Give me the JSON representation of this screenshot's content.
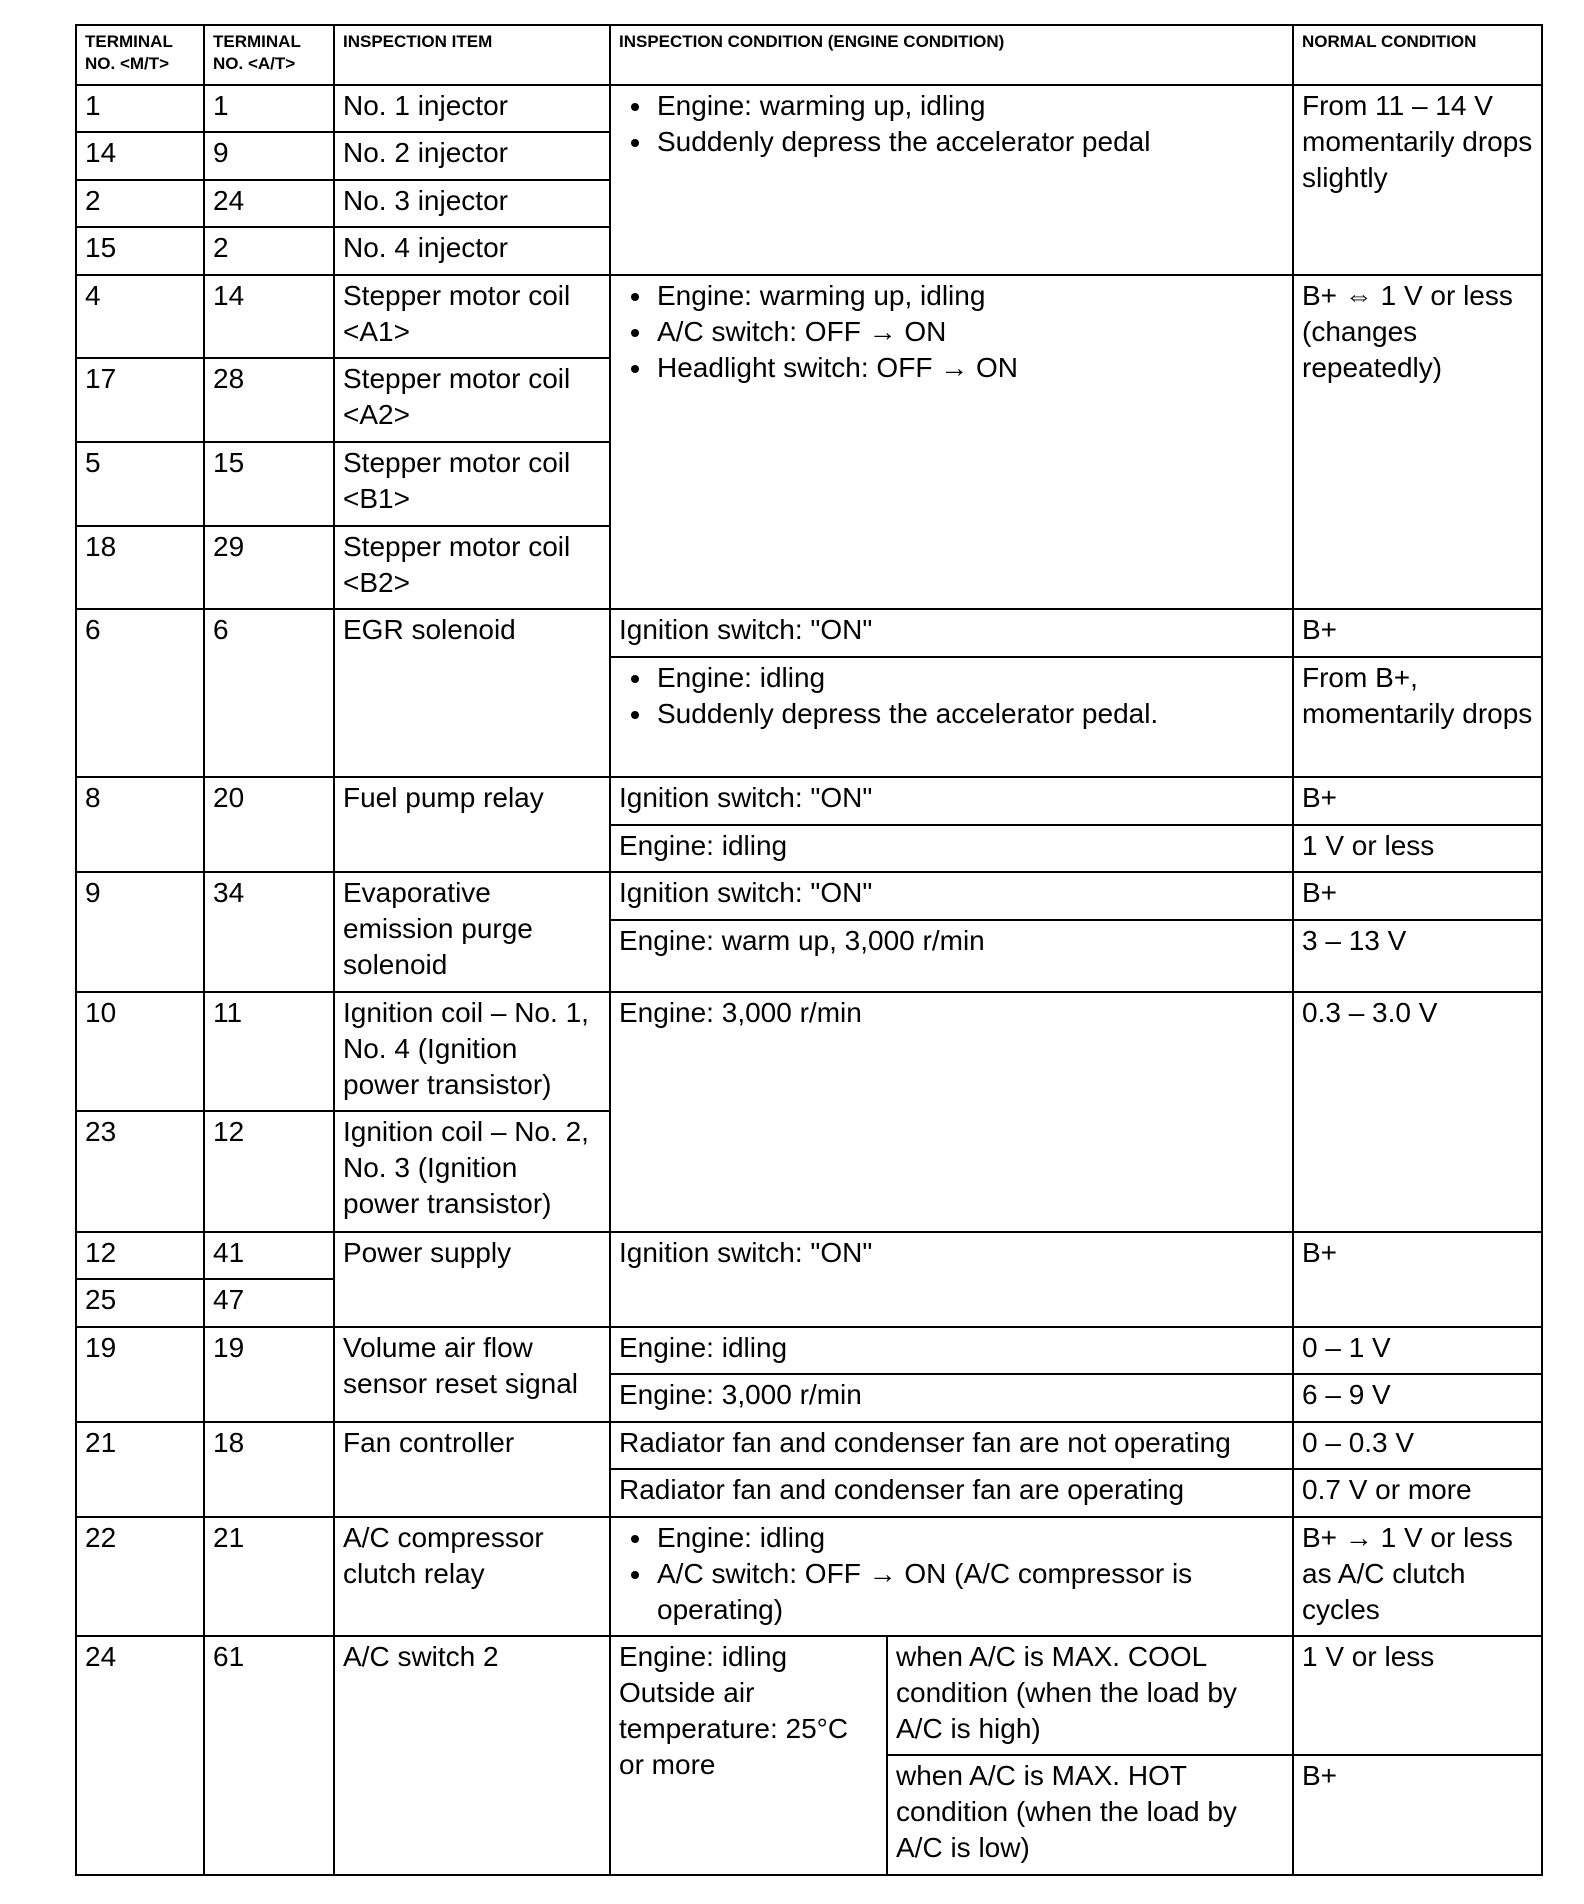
{
  "headers": [
    "TERMINAL NO. <M/T>",
    "TERMINAL NO. <A/T>",
    "INSPECTION ITEM",
    "INSPECTION CONDITION (ENGINE CONDITION)",
    "NORMAL CONDITION"
  ],
  "injectors": {
    "rows": [
      {
        "mt": "1",
        "at": "1",
        "item": "No. 1 injector"
      },
      {
        "mt": "14",
        "at": "9",
        "item": "No. 2 injector"
      },
      {
        "mt": "2",
        "at": "24",
        "item": "No. 3 injector"
      },
      {
        "mt": "15",
        "at": "2",
        "item": "No. 4 injector"
      }
    ],
    "conditions": [
      "Engine: warming up, idling",
      "Suddenly depress the accelerator pedal"
    ],
    "normal": "From 11 – 14 V momentarily drops slightly"
  },
  "stepper": {
    "rows": [
      {
        "mt": "4",
        "at": "14",
        "item": "Stepper motor coil <A1>"
      },
      {
        "mt": "17",
        "at": "28",
        "item": "Stepper motor coil <A2>"
      },
      {
        "mt": "5",
        "at": "15",
        "item": "Stepper motor coil <B1>"
      },
      {
        "mt": "18",
        "at": "29",
        "item": "Stepper motor coil <B2>"
      }
    ],
    "conditions": [
      "Engine: warming up, idling",
      "A/C switch: OFF → ON",
      "Headlight switch: OFF → ON"
    ],
    "normal": "B+ ⇔ 1 V or less (changes repeatedly)"
  },
  "egr": {
    "mt": "6",
    "at": "6",
    "item": "EGR solenoid",
    "cond1": "Ignition switch: \"ON\"",
    "normal1": "B+",
    "cond2": [
      "Engine: idling",
      "Suddenly depress the accelerator pedal."
    ],
    "normal2": "From B+, momentarily drops"
  },
  "fuel_pump": {
    "mt": "8",
    "at": "20",
    "item": "Fuel pump relay",
    "cond1": "Ignition switch: \"ON\"",
    "normal1": "B+",
    "cond2": "Engine: idling",
    "normal2": "1 V or less"
  },
  "evap": {
    "mt": "9",
    "at": "34",
    "item": "Evaporative emission purge solenoid",
    "cond1": "Ignition switch: \"ON\"",
    "normal1": "B+",
    "cond2": "Engine: warm up, 3,000 r/min",
    "normal2": "3 – 13 V"
  },
  "ignition": {
    "rows": [
      {
        "mt": "10",
        "at": "11",
        "item": "Ignition coil – No. 1, No. 4 (Ignition power transistor)"
      },
      {
        "mt": "23",
        "at": "12",
        "item": "Ignition coil – No. 2, No. 3 (Ignition power transistor)"
      }
    ],
    "condition": "Engine: 3,000 r/min",
    "normal": "0.3 – 3.0 V"
  },
  "power": {
    "rows": [
      {
        "mt": "12",
        "at": "41"
      },
      {
        "mt": "25",
        "at": "47"
      }
    ],
    "item": "Power supply",
    "condition": "Ignition switch: \"ON\"",
    "normal": "B+"
  },
  "vaf": {
    "mt": "19",
    "at": "19",
    "item": "Volume air flow sensor reset signal",
    "cond1": "Engine: idling",
    "normal1": "0 – 1 V",
    "cond2": "Engine: 3,000 r/min",
    "normal2": "6 – 9 V"
  },
  "fan": {
    "mt": "21",
    "at": "18",
    "item": "Fan controller",
    "cond1": "Radiator fan and condenser fan are not operating",
    "normal1": "0 – 0.3 V",
    "cond2": "Radiator fan and condenser fan are operating",
    "normal2": "0.7 V or more"
  },
  "ac_relay": {
    "mt": "22",
    "at": "21",
    "item": "A/C compressor clutch relay",
    "conditions": [
      "Engine: idling",
      "A/C switch: OFF → ON (A/C compressor is operating)"
    ],
    "normal": "B+ → 1 V or less as A/C clutch cycles"
  },
  "ac_switch": {
    "mt": "24",
    "at": "61",
    "item": "A/C switch 2",
    "condition": "Engine: idling Outside air temperature: 25°C or more",
    "sub1": "when A/C is MAX. COOL condition (when the load by A/C is high)",
    "normal1": "1 V or less",
    "sub2": "when A/C is MAX. HOT condition (when the load by A/C is low)",
    "normal2": "B+"
  }
}
